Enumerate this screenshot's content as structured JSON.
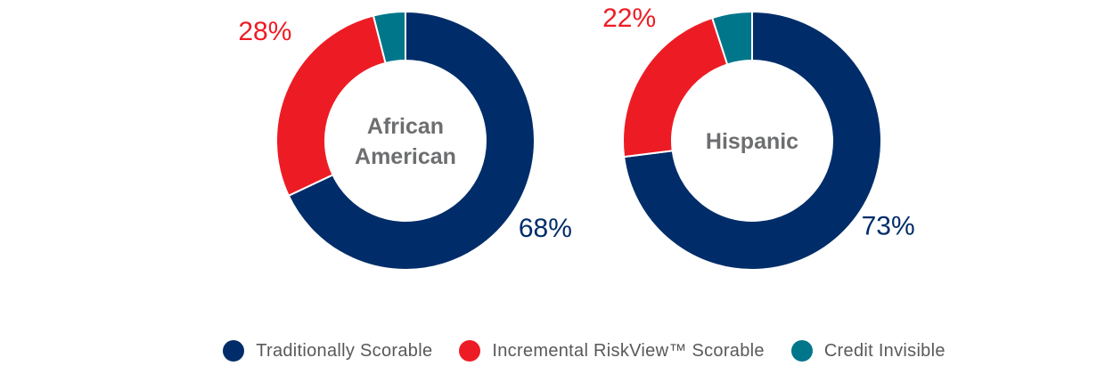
{
  "colors": {
    "traditionally_scorable": "#002d69",
    "incremental_scorable": "#ed1c24",
    "credit_invisible": "#00768a",
    "center_text": "#6d6e70",
    "legend_text": "#58595b"
  },
  "chart_data": [
    {
      "type": "pie",
      "center_label": [
        "African",
        "American"
      ],
      "slices": [
        {
          "category": "Traditionally Scorable",
          "value": 68,
          "label": "68%",
          "color_key": "traditionally_scorable"
        },
        {
          "category": "Incremental RiskView™ Scorable",
          "value": 28,
          "label": "28%",
          "color_key": "incremental_scorable"
        },
        {
          "category": "Credit Invisible",
          "value": 4,
          "label": "",
          "color_key": "credit_invisible"
        }
      ]
    },
    {
      "type": "pie",
      "center_label": [
        "Hispanic"
      ],
      "slices": [
        {
          "category": "Traditionally Scorable",
          "value": 73,
          "label": "73%",
          "color_key": "traditionally_scorable"
        },
        {
          "category": "Incremental RiskView™ Scorable",
          "value": 22,
          "label": "22%",
          "color_key": "incremental_scorable"
        },
        {
          "category": "Credit Invisible",
          "value": 5,
          "label": "",
          "color_key": "credit_invisible"
        }
      ]
    }
  ],
  "legend": {
    "placement": "bottom",
    "items": [
      {
        "label": "Traditionally Scorable",
        "color_key": "traditionally_scorable"
      },
      {
        "label": "Incremental RiskView™ Scorable",
        "color_key": "incremental_scorable"
      },
      {
        "label": "Credit Invisible",
        "color_key": "credit_invisible"
      }
    ]
  }
}
